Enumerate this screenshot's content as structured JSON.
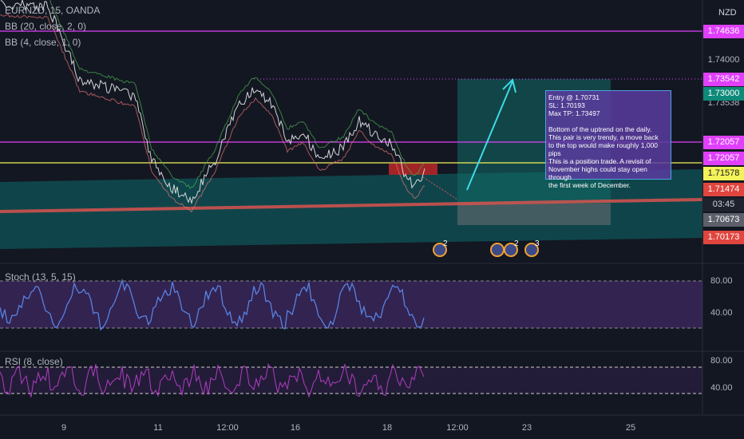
{
  "header": {
    "symbol": "EURNZD, 15, OANDA",
    "indicators": [
      "BB (20, close, 2, 0)",
      "BB (4, close, 1, 0)"
    ],
    "currency": "NZD"
  },
  "price_axis": {
    "labels": [
      "1.74636",
      "1.74000",
      "1.73542",
      "1.73538",
      "1.73000",
      "1.72057",
      "1.72057",
      "1.71578",
      "1.71474",
      "03:45",
      "1.70673",
      "1.70173"
    ]
  },
  "annotation": {
    "header_lines": [
      "Entry @ 1.70731",
      "SL: 1.70193",
      "Max TP: 1.73497"
    ],
    "body_lines": [
      "Bottom of the uptrend on the daily.",
      "This pair is very trendy, a move back",
      "to the top would make roughly 1,000 pips",
      "This is a position trade. A revisit of",
      "November highs could stay open through",
      "the first week of December."
    ]
  },
  "stoch": {
    "label": "Stoch (13, 5, 15)",
    "axis": [
      "80.00",
      "40.00"
    ]
  },
  "rsi": {
    "label": "RSI (8, close)",
    "axis": [
      "80.00",
      "40.00"
    ]
  },
  "time_axis": [
    "9",
    "11",
    "12:00",
    "16",
    "18",
    "12:00",
    "23",
    "25"
  ],
  "events": [
    "2",
    "2",
    "3"
  ]
}
